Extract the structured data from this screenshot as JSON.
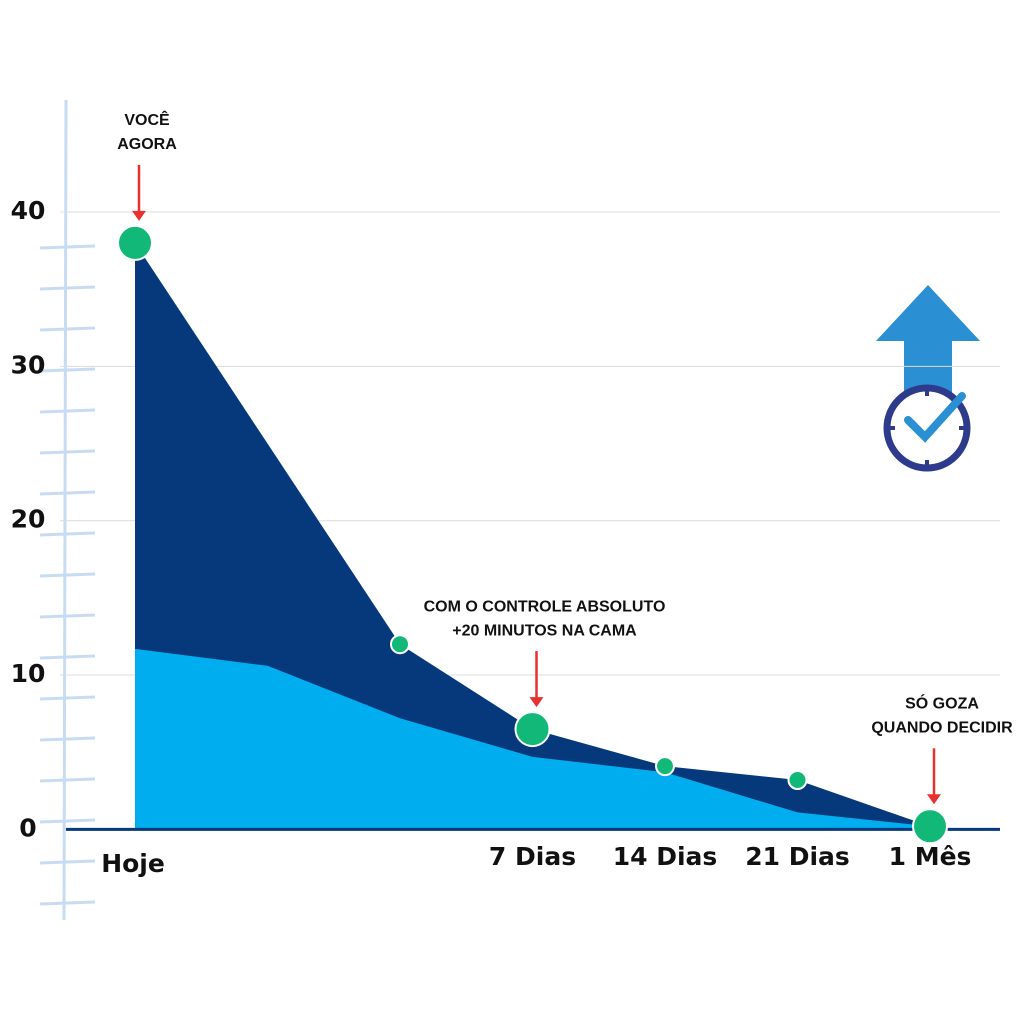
{
  "chart_data": {
    "type": "area",
    "categories": [
      "Hoje",
      null,
      null,
      "7 Dias",
      "14 Dias",
      "21 Dias",
      "1 Mês"
    ],
    "series": [
      {
        "color": "#05397b",
        "values": [
          38,
          25,
          12,
          6.5,
          4.1,
          3.2,
          0.2
        ]
      },
      {
        "color": "#00aeef",
        "values": [
          11.7,
          10.6,
          7.2,
          4.7,
          3.7,
          1.1,
          0.2
        ]
      },
      {
        "type": "scatter",
        "color": "#12b878",
        "values": [
          38,
          null,
          12,
          6.5,
          4.1,
          3.2,
          0.2
        ]
      }
    ],
    "annotations": [
      {
        "at": 0,
        "lines": [
          "VOCÊ",
          "AGORA"
        ]
      },
      {
        "at": 3,
        "lines": [
          "COM O CONTROLE ABSOLUTO",
          "+20 MINUTOS NA CAMA"
        ]
      },
      {
        "at": 6,
        "lines": [
          "SÓ GOZA",
          "QUANDO DECIDIR"
        ]
      }
    ],
    "ylim": [
      -6,
      47
    ],
    "yticks": [
      0,
      10,
      20,
      30,
      40
    ],
    "grid": true
  }
}
